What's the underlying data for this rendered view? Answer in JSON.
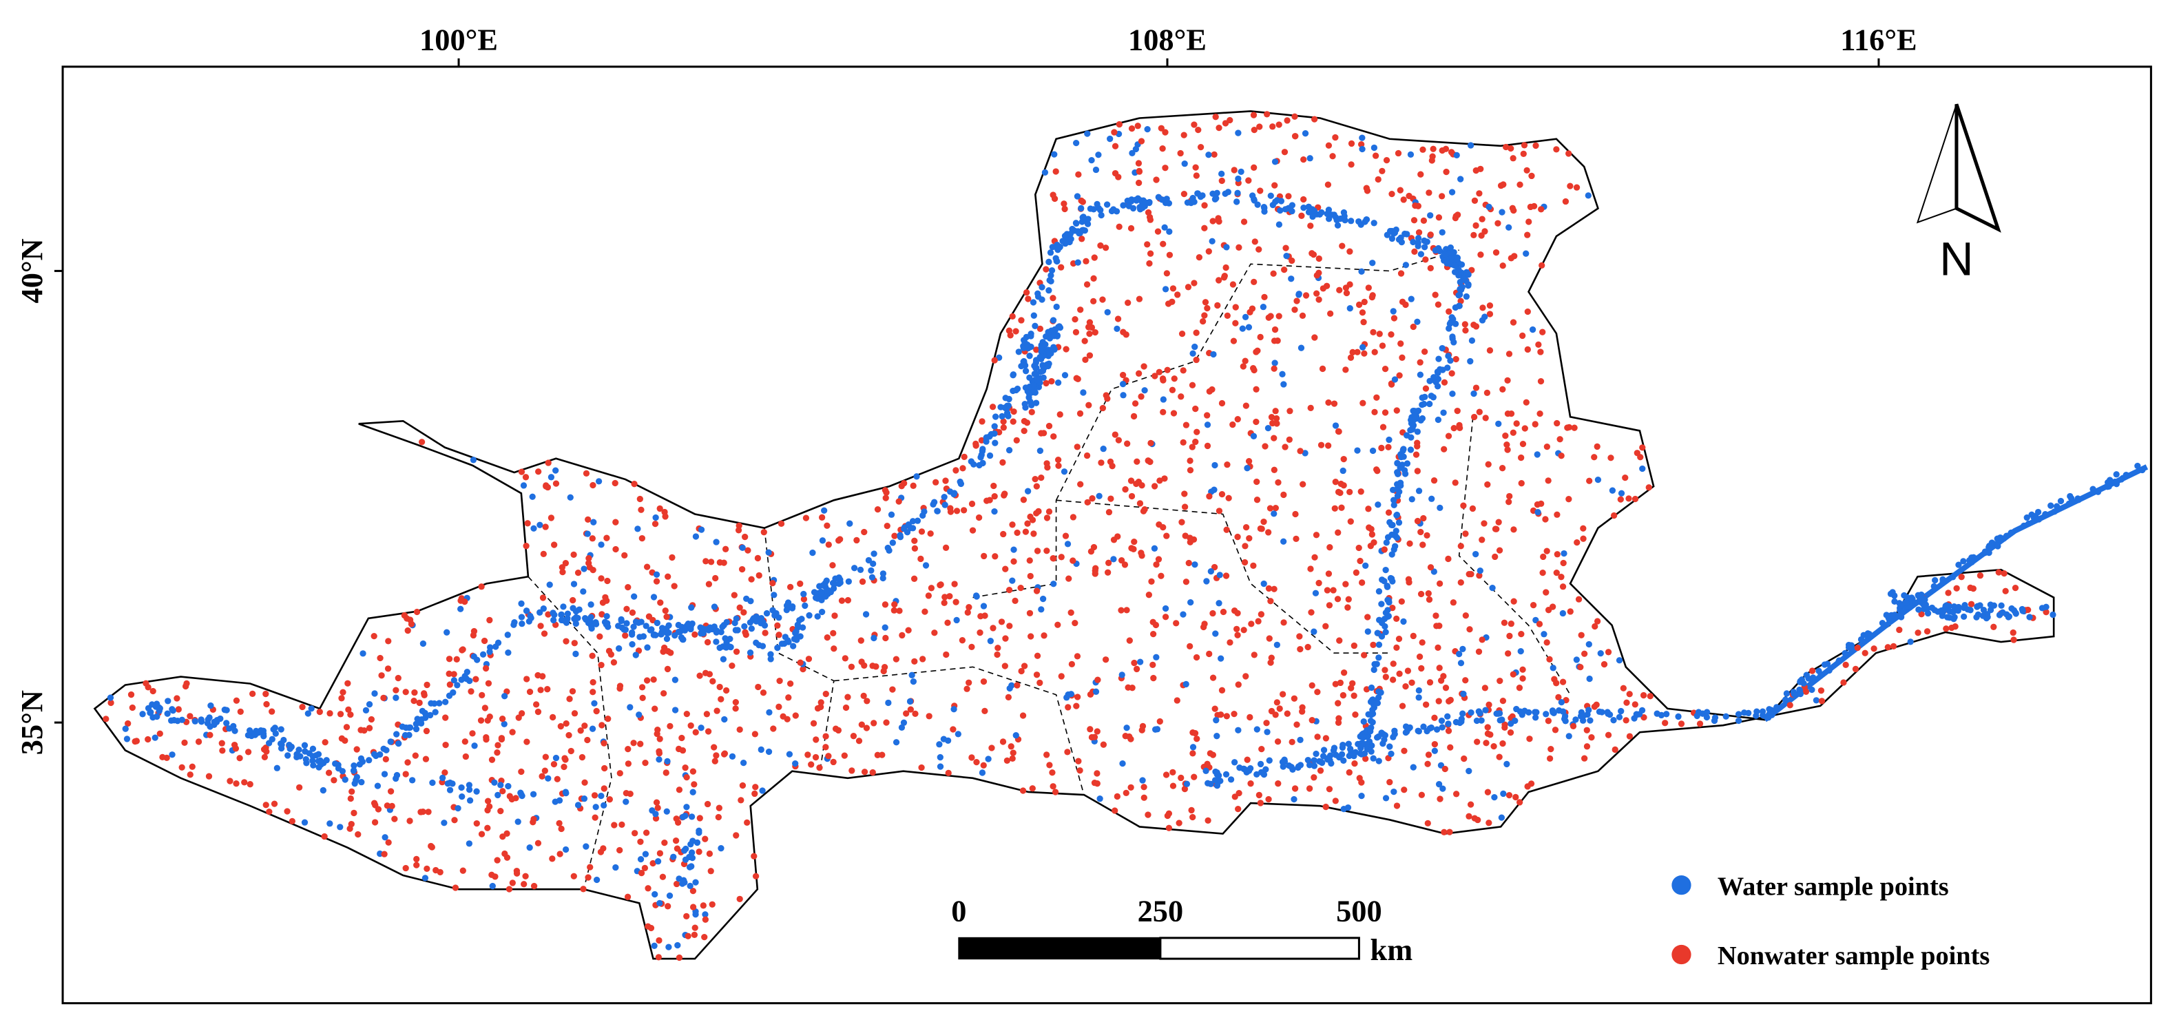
{
  "map": {
    "top_labels": [
      "100°E",
      "108°E",
      "116°E"
    ],
    "left_labels": [
      "40°N",
      "35°N"
    ],
    "north": "N",
    "scale_bar": {
      "labels": [
        "0",
        "250",
        "500"
      ],
      "unit": "km"
    },
    "legend": [
      "Water sample points",
      "Nonwater sample points"
    ]
  }
}
